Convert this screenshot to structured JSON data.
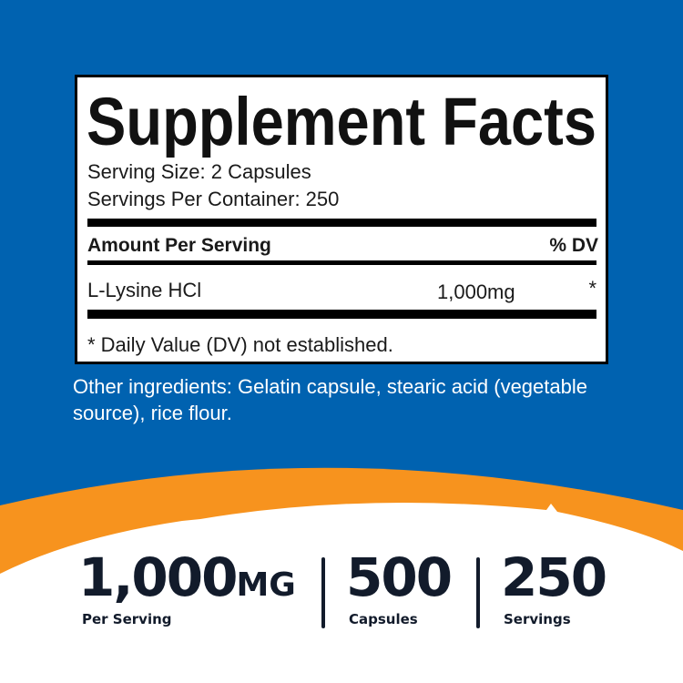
{
  "colors": {
    "background_blue": "#0062b0",
    "accent_orange": "#f7931e",
    "text_dark": "#121b2b"
  },
  "facts": {
    "title": "Supplement Facts",
    "serving_size": "Serving Size: 2 Capsules",
    "servings_per_container": "Servings Per Container: 250",
    "amount_header": "Amount Per Serving",
    "dv_header": "% DV",
    "rows": [
      {
        "name": "L-Lysine HCl",
        "amount": "1,000mg",
        "dv": "*"
      }
    ],
    "footnote": "* Daily Value (DV) not established."
  },
  "other_ingredients": "Other ingredients: Gelatin capsule, stearic acid (vegetable source), rice flour.",
  "stats": [
    {
      "value": "1,000",
      "unit": "MG",
      "label": "Per Serving"
    },
    {
      "value": "500",
      "label": "Capsules"
    },
    {
      "value": "250",
      "label": "Servings"
    }
  ]
}
